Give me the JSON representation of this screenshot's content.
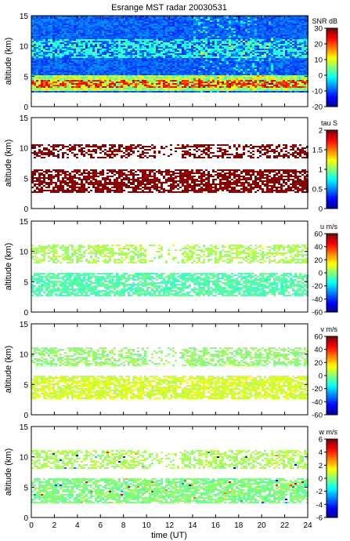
{
  "title": "Esrange MST radar 20030531",
  "xlabel": "time (UT)",
  "chart_data": [
    {
      "type": "heatmap",
      "quantity": "SNR",
      "colorbar_label": "SNR dB",
      "ylabel": "altitude (km)",
      "xlim": [
        0,
        24
      ],
      "ylim": [
        0,
        15
      ],
      "clim": [
        -20,
        30
      ],
      "colorbar_ticks": [
        -20,
        -10,
        0,
        10,
        20,
        30
      ],
      "yticks": [
        0,
        5,
        10,
        15
      ],
      "xticks": [
        0,
        2,
        4,
        6,
        8,
        10,
        12,
        14,
        16,
        18,
        20,
        22,
        24
      ],
      "data_altitude_range_km": [
        2.3,
        15
      ],
      "layers": [
        {
          "feature": "background noise",
          "altitude_km": [
            5,
            15
          ],
          "value": -10
        },
        {
          "feature": "strong echoes",
          "altitude_km": [
            2.5,
            5
          ],
          "value": 10
        },
        {
          "feature": "upper echo layer",
          "altitude_km": [
            8,
            11
          ],
          "value": 0
        }
      ]
    },
    {
      "type": "heatmap",
      "quantity": "tau",
      "colorbar_label": "tau S",
      "ylabel": "altitude (km)",
      "xlim": [
        0,
        24
      ],
      "ylim": [
        0,
        15
      ],
      "clim": [
        0,
        2
      ],
      "colorbar_ticks": [
        0,
        0.5,
        1,
        1.5,
        2
      ],
      "yticks": [
        0,
        5,
        10,
        15
      ],
      "xticks": [
        0,
        2,
        4,
        6,
        8,
        10,
        12,
        14,
        16,
        18,
        20,
        22,
        24
      ],
      "layers": [
        {
          "altitude_km": [
            8.2,
            10.5
          ],
          "value": 2
        },
        {
          "altitude_km": [
            2.5,
            6.5
          ],
          "value": 2
        }
      ]
    },
    {
      "type": "heatmap",
      "quantity": "u",
      "colorbar_label": "u m/s",
      "ylabel": "altitude (km)",
      "xlim": [
        0,
        24
      ],
      "ylim": [
        0,
        15
      ],
      "clim": [
        -60,
        60
      ],
      "colorbar_ticks": [
        -60,
        -40,
        -20,
        0,
        20,
        40,
        60
      ],
      "yticks": [
        0,
        5,
        10,
        15
      ],
      "xticks": [
        0,
        2,
        4,
        6,
        8,
        10,
        12,
        14,
        16,
        18,
        20,
        22,
        24
      ],
      "layers": [
        {
          "altitude_km": [
            8,
            11
          ],
          "value": 5
        },
        {
          "altitude_km": [
            2.5,
            6.5
          ],
          "value": -5
        }
      ]
    },
    {
      "type": "heatmap",
      "quantity": "v",
      "colorbar_label": "v m/s",
      "ylabel": "altitude (km)",
      "xlim": [
        0,
        24
      ],
      "ylim": [
        0,
        15
      ],
      "clim": [
        -60,
        60
      ],
      "colorbar_ticks": [
        -60,
        -40,
        -20,
        0,
        20,
        40,
        60
      ],
      "yticks": [
        0,
        5,
        10,
        15
      ],
      "xticks": [
        0,
        2,
        4,
        6,
        8,
        10,
        12,
        14,
        16,
        18,
        20,
        22,
        24
      ],
      "layers": [
        {
          "altitude_km": [
            8,
            11
          ],
          "value": 2
        },
        {
          "altitude_km": [
            2.5,
            6.5
          ],
          "value": 10
        }
      ]
    },
    {
      "type": "heatmap",
      "quantity": "w",
      "colorbar_label": "w m/s",
      "ylabel": "altitude (km)",
      "xlim": [
        0,
        24
      ],
      "ylim": [
        0,
        15
      ],
      "clim": [
        -6,
        6
      ],
      "colorbar_ticks": [
        -6,
        -4,
        -2,
        0,
        2,
        4,
        6
      ],
      "yticks": [
        0,
        5,
        10,
        15
      ],
      "xticks": [
        0,
        2,
        4,
        6,
        8,
        10,
        12,
        14,
        16,
        18,
        20,
        22,
        24
      ],
      "layers": [
        {
          "altitude_km": [
            8,
            11
          ],
          "value": 0.5
        },
        {
          "altitude_km": [
            2.3,
            6.5
          ],
          "value": 0
        }
      ]
    }
  ]
}
